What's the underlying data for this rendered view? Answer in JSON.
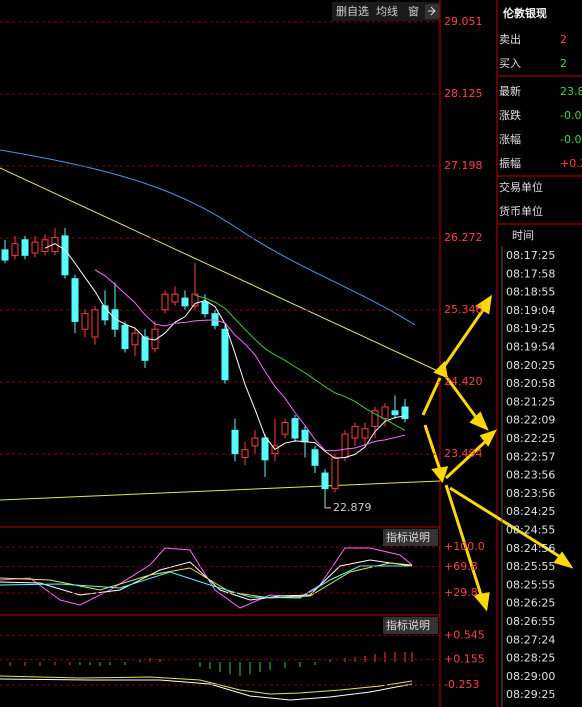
{
  "toolbar": {
    "buttons": [
      "删自选",
      "均线",
      "窗"
    ]
  },
  "chart_data": {
    "type": "candlestick",
    "ylim": [
      22.556,
      29.334
    ],
    "yticks": [
      29.051,
      28.125,
      27.198,
      26.272,
      25.346,
      {
        "value": 24.42,
        "label": "24.420"
      },
      23.494
    ],
    "up_color": "#ff3c3c",
    "down_color": "#54fcfc",
    "candles": {
      "open": [
        26.12,
        26.05,
        26.25,
        26.08,
        26.1,
        26.1,
        26.3,
        25.75,
        25.1,
        25.0,
        25.4,
        25.35,
        25.15,
        24.9,
        25.0,
        24.85,
        25.35,
        25.45,
        25.5,
        25.4,
        25.45,
        25.3,
        25.1,
        23.8,
        23.45,
        23.6,
        23.7,
        23.5,
        23.75,
        23.95,
        23.8,
        23.55,
        23.25,
        23.05,
        23.45,
        23.7,
        23.7,
        23.85,
        23.95,
        24.05,
        24.1
      ],
      "close": [
        25.99,
        26.2,
        26.05,
        26.22,
        26.25,
        26.28,
        25.8,
        25.2,
        25.3,
        25.35,
        25.22,
        25.1,
        24.85,
        25.05,
        24.7,
        25.1,
        25.55,
        25.55,
        25.4,
        25.55,
        25.3,
        25.15,
        24.45,
        23.5,
        23.55,
        23.7,
        23.42,
        23.6,
        23.9,
        23.7,
        23.65,
        23.35,
        23.05,
        23.45,
        23.75,
        23.85,
        23.82,
        24.05,
        24.1,
        24.0,
        23.95
      ],
      "high": [
        26.25,
        26.3,
        26.3,
        26.3,
        26.32,
        26.4,
        26.4,
        25.8,
        25.35,
        25.4,
        25.6,
        25.7,
        25.2,
        25.1,
        25.1,
        25.2,
        25.6,
        25.65,
        25.6,
        25.95,
        25.55,
        25.35,
        25.15,
        23.95,
        23.65,
        23.8,
        23.75,
        23.95,
        23.95,
        24.0,
        23.85,
        23.6,
        23.3,
        23.5,
        23.8,
        23.9,
        23.9,
        24.1,
        24.15,
        24.25,
        24.2
      ],
      "low": [
        25.95,
        26.0,
        26.0,
        26.02,
        26.05,
        26.05,
        25.75,
        25.05,
        25.0,
        24.9,
        25.15,
        25.0,
        24.8,
        24.75,
        24.6,
        24.8,
        25.3,
        25.4,
        25.35,
        25.35,
        25.25,
        25.1,
        24.4,
        23.4,
        23.35,
        23.5,
        23.2,
        23.4,
        23.7,
        23.65,
        23.45,
        23.25,
        22.879,
        23.0,
        23.4,
        23.6,
        23.6,
        23.7,
        23.85,
        23.95,
        23.9
      ]
    },
    "low_annotation": "22.879",
    "moving_averages": [
      {
        "period": 5,
        "color": "#ffffff"
      },
      {
        "period": 10,
        "color": "#ff66ff"
      },
      {
        "period": 20,
        "color": "#33cc33"
      }
    ]
  },
  "indicator_panels": [
    {
      "button": "指标说明",
      "ylim": [
        -3.8,
        110.7
      ],
      "yticks": [
        {
          "value": 100,
          "label": "+100.0"
        },
        {
          "value": 69.8,
          "label": "+69.8"
        },
        {
          "value": 29.8,
          "label": "+29.8"
        }
      ]
    },
    {
      "button": "指标说明",
      "ylim": [
        -0.608,
        0.664
      ],
      "yticks": [
        {
          "value": 0.545,
          "label": "+0.545"
        },
        {
          "value": 0.155,
          "label": "+0.155"
        },
        -0.253
      ]
    }
  ],
  "quote": {
    "title": "伦敦银现",
    "rows": [
      {
        "label": "卖出",
        "value": "2"
      },
      {
        "label": "买入",
        "value": "2"
      },
      {
        "label": "最新",
        "value": "23.8"
      },
      {
        "label": "涨跌",
        "value": "-0.0"
      },
      {
        "label": "涨幅",
        "value": "-0.0"
      },
      {
        "label": "振幅",
        "value": "+0.2"
      }
    ],
    "extra": [
      "交易单位",
      "货币单位"
    ],
    "time_header": "时间",
    "times": [
      "08:17:25",
      "08:17:58",
      "08:18:55",
      "08:19:04",
      "08:19:25",
      "08:19:54",
      "08:20:25",
      "08:20:58",
      "08:21:25",
      "08:22:09",
      "08:22:25",
      "08:22:57",
      "08:23:56",
      "08:23:56",
      "08:24:25",
      "08:24:55",
      "08:24:56",
      "08:25:55",
      "08:25:55",
      "08:26:25",
      "08:26:55",
      "08:27:24",
      "08:28:25",
      "08:29:00",
      "08:29:25"
    ]
  }
}
